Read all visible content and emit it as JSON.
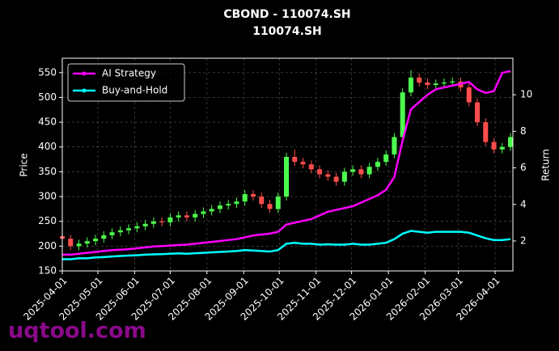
{
  "chart_data": {
    "type": "candlestick",
    "title": "CBOND - 110074.SH",
    "subtitle": "110074.SH",
    "ylabel": "Price",
    "y2label": "Return",
    "watermark": "uqtool.com",
    "x": [
      "2025-04-01",
      "2025-04-08",
      "2025-04-15",
      "2025-04-22",
      "2025-04-29",
      "2025-05-06",
      "2025-05-13",
      "2025-05-20",
      "2025-05-27",
      "2025-06-03",
      "2025-06-10",
      "2025-06-17",
      "2025-06-24",
      "2025-07-01",
      "2025-07-08",
      "2025-07-15",
      "2025-07-22",
      "2025-07-29",
      "2025-08-05",
      "2025-08-12",
      "2025-08-19",
      "2025-08-26",
      "2025-09-02",
      "2025-09-09",
      "2025-09-16",
      "2025-09-23",
      "2025-09-30",
      "2025-10-07",
      "2025-10-14",
      "2025-10-21",
      "2025-10-28",
      "2025-11-04",
      "2025-11-11",
      "2025-11-18",
      "2025-11-25",
      "2025-12-02",
      "2025-12-09",
      "2025-12-16",
      "2025-12-23",
      "2025-12-30",
      "2026-01-06",
      "2026-01-13",
      "2026-01-20",
      "2026-01-27",
      "2026-02-03",
      "2026-02-10",
      "2026-02-17",
      "2026-02-24",
      "2026-03-03",
      "2026-03-10",
      "2026-03-17",
      "2026-03-24",
      "2026-03-31",
      "2026-04-07",
      "2026-04-14"
    ],
    "open": [
      220,
      215,
      200,
      205,
      210,
      215,
      222,
      228,
      232,
      236,
      240,
      245,
      250,
      248,
      258,
      262,
      258,
      265,
      270,
      275,
      282,
      285,
      290,
      305,
      300,
      285,
      275,
      300,
      380,
      370,
      365,
      355,
      345,
      340,
      330,
      350,
      355,
      345,
      360,
      370,
      385,
      420,
      510,
      540,
      530,
      525,
      528,
      530,
      532,
      520,
      490,
      450,
      410,
      395,
      400
    ],
    "high": [
      228,
      223,
      213,
      218,
      223,
      230,
      236,
      240,
      244,
      248,
      253,
      258,
      258,
      266,
      270,
      270,
      273,
      278,
      283,
      290,
      293,
      298,
      313,
      313,
      308,
      293,
      308,
      388,
      395,
      378,
      373,
      363,
      353,
      348,
      358,
      363,
      363,
      368,
      378,
      393,
      428,
      518,
      555,
      548,
      538,
      536,
      538,
      540,
      540,
      528,
      498,
      458,
      418,
      408,
      428
    ],
    "low": [
      207,
      192,
      192,
      197,
      202,
      207,
      214,
      220,
      224,
      228,
      232,
      237,
      240,
      240,
      250,
      250,
      250,
      257,
      262,
      267,
      274,
      277,
      282,
      292,
      277,
      267,
      267,
      292,
      362,
      357,
      347,
      337,
      332,
      322,
      322,
      342,
      337,
      337,
      352,
      362,
      377,
      412,
      502,
      522,
      517,
      517,
      520,
      522,
      512,
      482,
      442,
      402,
      387,
      387,
      392
    ],
    "close": [
      215,
      200,
      205,
      210,
      215,
      222,
      228,
      232,
      236,
      240,
      245,
      250,
      248,
      258,
      262,
      258,
      265,
      270,
      275,
      282,
      285,
      290,
      305,
      300,
      285,
      275,
      300,
      380,
      370,
      365,
      355,
      345,
      340,
      330,
      350,
      355,
      345,
      360,
      370,
      385,
      420,
      510,
      540,
      530,
      525,
      528,
      530,
      532,
      520,
      490,
      450,
      410,
      395,
      400,
      420
    ],
    "up_color": "#4dff4d",
    "down_color": "#ff4d4d",
    "series": [
      {
        "name": "AI Strategy",
        "color": "#ff00ff",
        "axis": "y2",
        "values": [
          1.25,
          1.25,
          1.3,
          1.35,
          1.4,
          1.45,
          1.5,
          1.52,
          1.55,
          1.6,
          1.65,
          1.7,
          1.72,
          1.75,
          1.78,
          1.8,
          1.85,
          1.9,
          1.95,
          2.0,
          2.05,
          2.1,
          2.2,
          2.3,
          2.35,
          2.4,
          2.5,
          2.9,
          3.0,
          3.1,
          3.2,
          3.4,
          3.6,
          3.7,
          3.8,
          3.9,
          4.1,
          4.3,
          4.5,
          4.8,
          5.5,
          7.5,
          9.2,
          9.6,
          10.0,
          10.3,
          10.4,
          10.5,
          10.6,
          10.7,
          10.3,
          10.1,
          10.2,
          11.2,
          11.3
        ]
      },
      {
        "name": "Buy-and-Hold",
        "color": "#00ffff",
        "axis": "y2",
        "values": [
          1.0,
          1.0,
          1.05,
          1.05,
          1.1,
          1.12,
          1.15,
          1.18,
          1.2,
          1.22,
          1.25,
          1.27,
          1.28,
          1.3,
          1.32,
          1.3,
          1.33,
          1.35,
          1.38,
          1.4,
          1.42,
          1.45,
          1.5,
          1.48,
          1.45,
          1.42,
          1.5,
          1.85,
          1.9,
          1.85,
          1.85,
          1.8,
          1.82,
          1.8,
          1.8,
          1.85,
          1.8,
          1.8,
          1.85,
          1.9,
          2.1,
          2.4,
          2.55,
          2.5,
          2.45,
          2.5,
          2.5,
          2.5,
          2.5,
          2.45,
          2.3,
          2.15,
          2.05,
          2.05,
          2.1
        ]
      }
    ],
    "xlim": [
      "2025-04-01",
      "2026-04-16"
    ],
    "xticks": [
      "2025-04-01",
      "2025-05-01",
      "2025-06-01",
      "2025-07-01",
      "2025-08-01",
      "2025-09-01",
      "2025-10-01",
      "2025-11-01",
      "2025-12-01",
      "2026-01-01",
      "2026-02-01",
      "2026-03-01",
      "2026-04-01"
    ],
    "ylim": [
      150,
      579
    ],
    "yticks": [
      150,
      200,
      250,
      300,
      350,
      400,
      450,
      500,
      550
    ],
    "y2lim": [
      0.36,
      12
    ],
    "y2ticks": [
      2,
      4,
      6,
      8,
      10
    ],
    "grid": true,
    "legend": "upper left"
  }
}
